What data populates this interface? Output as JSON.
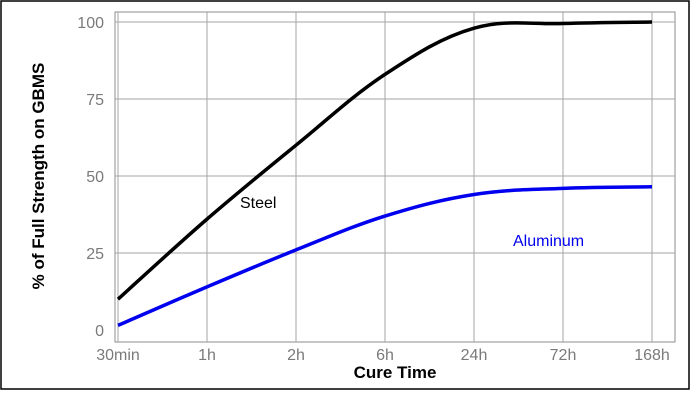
{
  "chart_data": {
    "type": "line",
    "title": "",
    "xlabel": "Cure Time",
    "ylabel": "% of Full Strength on GBMS",
    "categories": [
      "30min",
      "1h",
      "2h",
      "6h",
      "24h",
      "72h",
      "168h"
    ],
    "yticks": [
      "0",
      "25",
      "50",
      "75",
      "100"
    ],
    "ylim": [
      0,
      100
    ],
    "grid": true,
    "legend": "none",
    "series": [
      {
        "name": "Steel",
        "color": "#000000",
        "values": [
          10,
          36,
          60,
          83,
          98,
          99.5,
          100
        ]
      },
      {
        "name": "Aluminum",
        "color": "#0000ee",
        "values": [
          1.5,
          14,
          26,
          37,
          44,
          46,
          46.5
        ]
      }
    ]
  }
}
